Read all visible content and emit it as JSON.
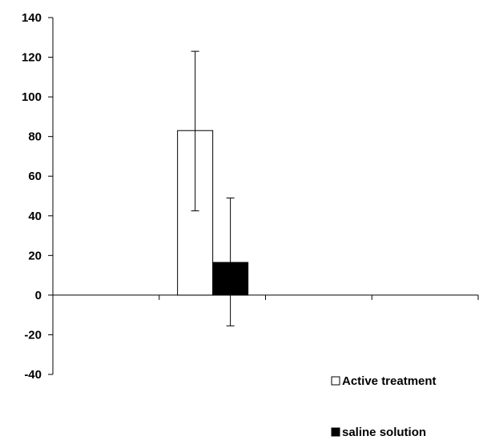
{
  "chart_data": {
    "type": "bar",
    "title": "",
    "xlabel": "",
    "ylabel": "",
    "ylim": [
      -40,
      140
    ],
    "yticks": [
      -40,
      -20,
      0,
      20,
      40,
      60,
      80,
      100,
      120,
      140
    ],
    "x_category_slots": 4,
    "bar_group_slot": 1,
    "grid": false,
    "legend_position": "bottom-right",
    "series": [
      {
        "name": "Active treatment",
        "value": 83,
        "error_low": 42.5,
        "error_high": 123,
        "fill": "#ffffff",
        "stroke": "#000000"
      },
      {
        "name": "saline solution",
        "value": 16.5,
        "error_low": -15.5,
        "error_high": 49,
        "fill": "#000000",
        "stroke": "#000000"
      }
    ]
  }
}
